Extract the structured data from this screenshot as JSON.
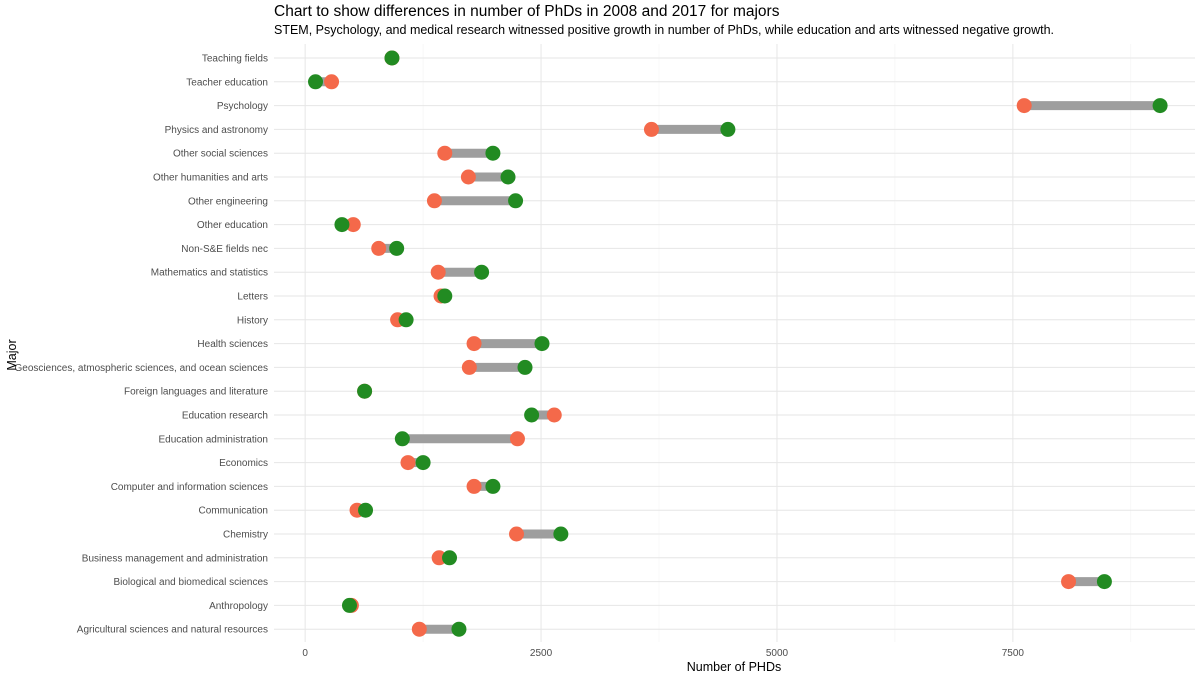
{
  "chart_data": {
    "type": "dumbbell",
    "title": "Chart to show differences in number of PhDs in 2008 and 2017 for majors",
    "subtitle": "STEM, Psychology, and medical research witnessed positive growth in number of PhDs, while education and arts witnessed negative growth.",
    "xlabel": "Number of PHDs",
    "ylabel": "Major",
    "xlim": [
      -330,
      9430
    ],
    "xticks": [
      0,
      2500,
      5000,
      7500
    ],
    "xtick_labels": [
      "0",
      "2500",
      "5000",
      "7500"
    ],
    "grid": true,
    "colors": {
      "start": "#f4694a",
      "end": "#228b22",
      "segment": "#9e9e9e"
    },
    "series_keys": [
      "2008",
      "2017"
    ],
    "categories": [
      "Teaching fields",
      "Teacher education",
      "Psychology",
      "Physics and astronomy",
      "Other social sciences",
      "Other humanities and arts",
      "Other engineering",
      "Other education",
      "Non-S&E fields nec",
      "Mathematics and statistics",
      "Letters",
      "History",
      "Health sciences",
      "Geosciences, atmospheric sciences, and ocean sciences",
      "Foreign languages and literature",
      "Education research",
      "Education administration",
      "Economics",
      "Computer and information sciences",
      "Communication",
      "Chemistry",
      "Business management and administration",
      "Biological and biomedical sciences",
      "Anthropology",
      "Agricultural sciences and natural resources"
    ],
    "values_2008": [
      920,
      280,
      7620,
      3670,
      1480,
      1730,
      1370,
      510,
      780,
      1410,
      1440,
      980,
      1790,
      1740,
      630,
      2640,
      2250,
      1090,
      1790,
      550,
      2240,
      1420,
      8090,
      490,
      1210
    ],
    "values_2017": [
      920,
      110,
      9060,
      4480,
      1990,
      2150,
      2230,
      390,
      970,
      1870,
      1480,
      1070,
      2510,
      2330,
      630,
      2400,
      1030,
      1250,
      1990,
      640,
      2710,
      1530,
      8470,
      470,
      1630
    ]
  }
}
